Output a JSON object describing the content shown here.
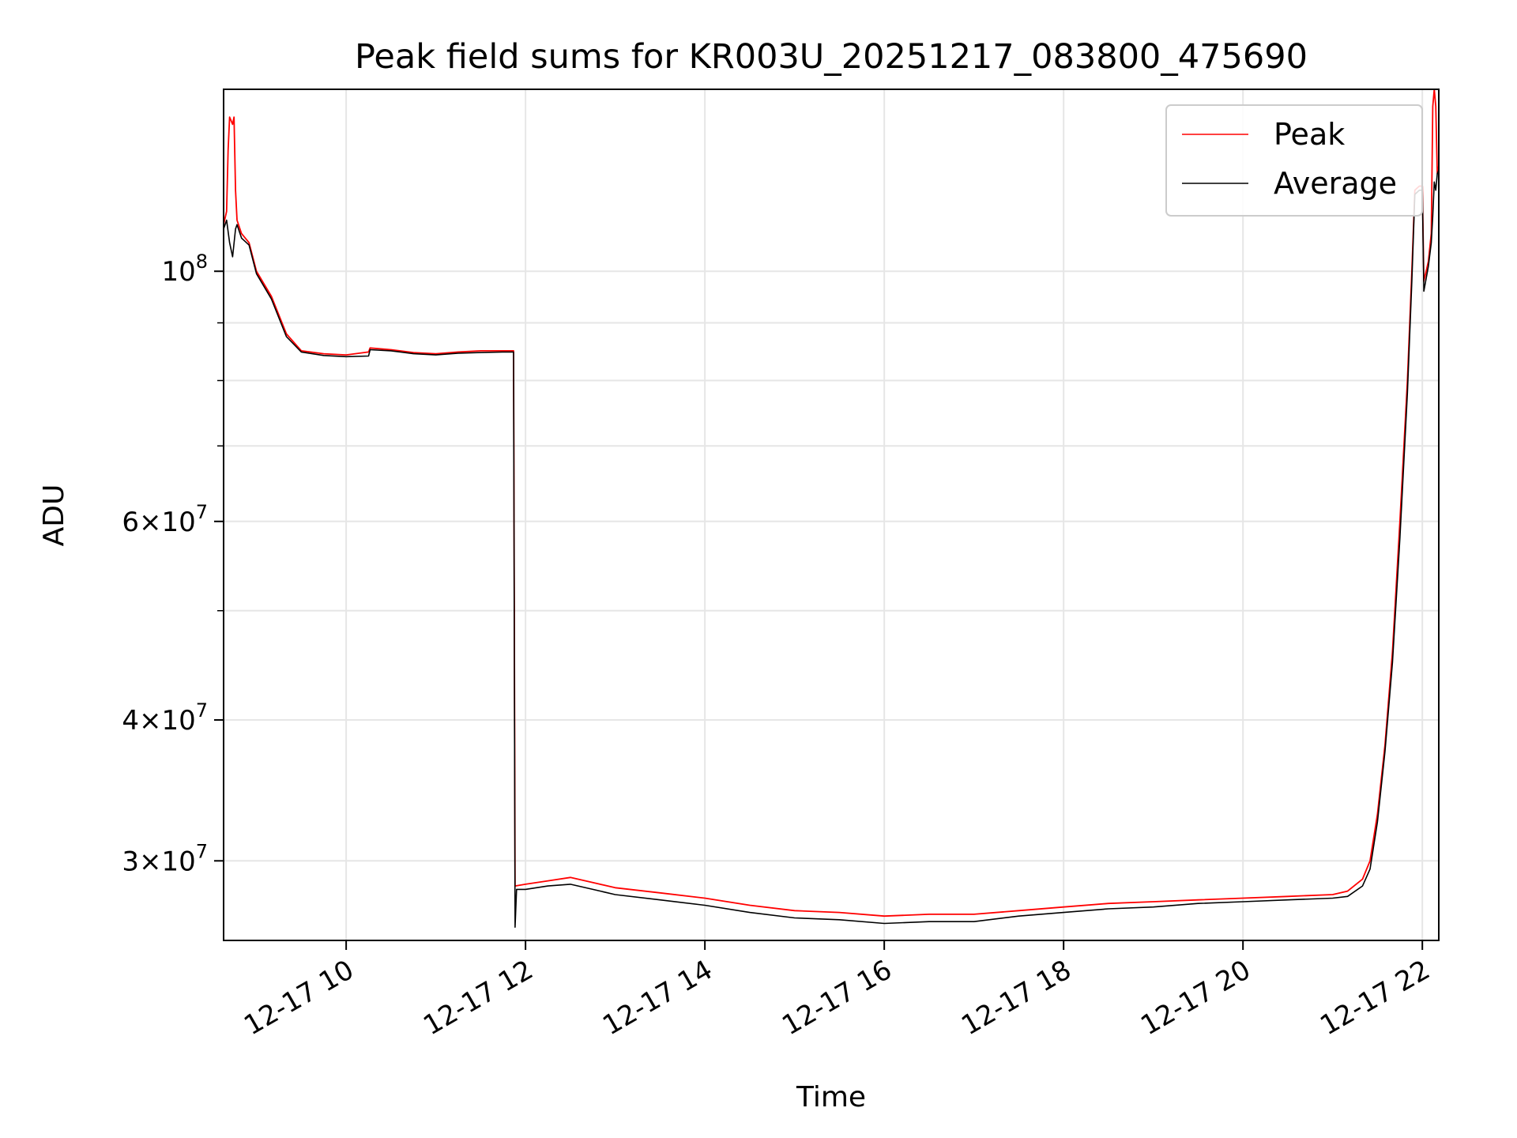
{
  "chart_data": {
    "type": "line",
    "title": "Peak field sums for KR003U_20251217_083800_475690",
    "xlabel": "Time",
    "ylabel": "ADU",
    "x_unit": "hours on 2025-12-17",
    "xlim": [
      "08:38",
      "22:11"
    ],
    "ylim": [
      25500000,
      145000000
    ],
    "y_scale": "log",
    "grid": true,
    "legend_position": "top-right",
    "x_ticks": [
      {
        "x": 10,
        "label": "12-17 10"
      },
      {
        "x": 12,
        "label": "12-17 12"
      },
      {
        "x": 14,
        "label": "12-17 14"
      },
      {
        "x": 16,
        "label": "12-17 16"
      },
      {
        "x": 18,
        "label": "12-17 18"
      },
      {
        "x": 20,
        "label": "12-17 20"
      },
      {
        "x": 22,
        "label": "12-17 22"
      }
    ],
    "y_ticks": [
      {
        "y": 30000000,
        "base": "3×10",
        "exp": "7"
      },
      {
        "y": 40000000,
        "base": "4×10",
        "exp": "7"
      },
      {
        "y": 60000000,
        "base": "6×10",
        "exp": "7"
      },
      {
        "y": 100000000,
        "base": "10",
        "exp": "8"
      }
    ],
    "y_minor_ticks": [
      50000000,
      70000000,
      80000000,
      90000000
    ],
    "series": [
      {
        "name": "Peak",
        "color": "#ff0000",
        "points": [
          [
            "08:38",
            110000000
          ],
          [
            "08:40",
            113000000
          ],
          [
            "08:41",
            128000000
          ],
          [
            "08:42",
            137000000
          ],
          [
            "08:44",
            135000000
          ],
          [
            "08:45",
            137000000
          ],
          [
            "08:46",
            118000000
          ],
          [
            "08:47",
            111000000
          ],
          [
            "08:50",
            108000000
          ],
          [
            "08:55",
            106000000
          ],
          [
            "09:00",
            100000000
          ],
          [
            "09:10",
            95000000
          ],
          [
            "09:20",
            88000000
          ],
          [
            "09:30",
            85000000
          ],
          [
            "09:45",
            84500000
          ],
          [
            "10:00",
            84300000
          ],
          [
            "10:15",
            84800000
          ],
          [
            "10:16",
            85500000
          ],
          [
            "10:30",
            85200000
          ],
          [
            "10:45",
            84700000
          ],
          [
            "11:00",
            84500000
          ],
          [
            "11:15",
            84800000
          ],
          [
            "11:30",
            85000000
          ],
          [
            "11:45",
            85000000
          ],
          [
            "11:52",
            85000000
          ],
          [
            "11:53",
            28500000
          ],
          [
            "12:00",
            28600000
          ],
          [
            "12:15",
            28800000
          ],
          [
            "12:30",
            29000000
          ],
          [
            "12:45",
            28700000
          ],
          [
            "13:00",
            28400000
          ],
          [
            "13:30",
            28100000
          ],
          [
            "14:00",
            27800000
          ],
          [
            "14:30",
            27400000
          ],
          [
            "15:00",
            27100000
          ],
          [
            "15:30",
            27000000
          ],
          [
            "16:00",
            26800000
          ],
          [
            "16:30",
            26900000
          ],
          [
            "17:00",
            26900000
          ],
          [
            "17:30",
            27100000
          ],
          [
            "18:00",
            27300000
          ],
          [
            "18:30",
            27500000
          ],
          [
            "19:00",
            27600000
          ],
          [
            "19:30",
            27700000
          ],
          [
            "20:00",
            27800000
          ],
          [
            "20:30",
            27900000
          ],
          [
            "21:00",
            28000000
          ],
          [
            "21:10",
            28200000
          ],
          [
            "21:20",
            28900000
          ],
          [
            "21:25",
            30000000
          ],
          [
            "21:30",
            33000000
          ],
          [
            "21:35",
            38000000
          ],
          [
            "21:40",
            46000000
          ],
          [
            "21:45",
            60000000
          ],
          [
            "21:50",
            80000000
          ],
          [
            "21:53",
            100000000
          ],
          [
            "21:55",
            118000000
          ],
          [
            "21:58",
            119000000
          ],
          [
            "22:00",
            119000000
          ],
          [
            "22:01",
            98000000
          ],
          [
            "22:04",
            102000000
          ],
          [
            "22:06",
            108000000
          ],
          [
            "22:07",
            140000000
          ],
          [
            "22:08",
            145000000
          ],
          [
            "22:09",
            140000000
          ],
          [
            "22:10",
            122000000
          ],
          [
            "22:11",
            124000000
          ]
        ]
      },
      {
        "name": "Average",
        "color": "#000000",
        "points": [
          [
            "08:38",
            109000000
          ],
          [
            "08:40",
            111000000
          ],
          [
            "08:42",
            106000000
          ],
          [
            "08:44",
            103000000
          ],
          [
            "08:46",
            109000000
          ],
          [
            "08:47",
            110000000
          ],
          [
            "08:50",
            107000000
          ],
          [
            "08:55",
            105500000
          ],
          [
            "09:00",
            99500000
          ],
          [
            "09:10",
            94500000
          ],
          [
            "09:20",
            87500000
          ],
          [
            "09:30",
            84800000
          ],
          [
            "09:45",
            84200000
          ],
          [
            "10:00",
            84000000
          ],
          [
            "10:15",
            84100000
          ],
          [
            "10:16",
            85200000
          ],
          [
            "10:30",
            85000000
          ],
          [
            "10:45",
            84500000
          ],
          [
            "11:00",
            84300000
          ],
          [
            "11:15",
            84600000
          ],
          [
            "11:30",
            84700000
          ],
          [
            "11:45",
            84800000
          ],
          [
            "11:52",
            84800000
          ],
          [
            "11:53",
            26200000
          ],
          [
            "11:54",
            28300000
          ],
          [
            "12:00",
            28300000
          ],
          [
            "12:15",
            28500000
          ],
          [
            "12:30",
            28600000
          ],
          [
            "12:45",
            28300000
          ],
          [
            "13:00",
            28000000
          ],
          [
            "13:30",
            27700000
          ],
          [
            "14:00",
            27400000
          ],
          [
            "14:30",
            27000000
          ],
          [
            "15:00",
            26700000
          ],
          [
            "15:30",
            26600000
          ],
          [
            "16:00",
            26400000
          ],
          [
            "16:30",
            26500000
          ],
          [
            "17:00",
            26500000
          ],
          [
            "17:30",
            26800000
          ],
          [
            "18:00",
            27000000
          ],
          [
            "18:30",
            27200000
          ],
          [
            "19:00",
            27300000
          ],
          [
            "19:30",
            27500000
          ],
          [
            "20:00",
            27600000
          ],
          [
            "20:30",
            27700000
          ],
          [
            "21:00",
            27800000
          ],
          [
            "21:10",
            27900000
          ],
          [
            "21:20",
            28500000
          ],
          [
            "21:25",
            29500000
          ],
          [
            "21:30",
            32500000
          ],
          [
            "21:35",
            37500000
          ],
          [
            "21:40",
            45000000
          ],
          [
            "21:45",
            58000000
          ],
          [
            "21:50",
            78000000
          ],
          [
            "21:53",
            98000000
          ],
          [
            "21:55",
            117000000
          ],
          [
            "21:58",
            118000000
          ],
          [
            "22:00",
            118000000
          ],
          [
            "22:01",
            96000000
          ],
          [
            "22:04",
            101000000
          ],
          [
            "22:06",
            106000000
          ],
          [
            "22:07",
            112000000
          ],
          [
            "22:08",
            120000000
          ],
          [
            "22:09",
            118000000
          ],
          [
            "22:10",
            122000000
          ],
          [
            "22:11",
            123000000
          ]
        ]
      }
    ]
  }
}
